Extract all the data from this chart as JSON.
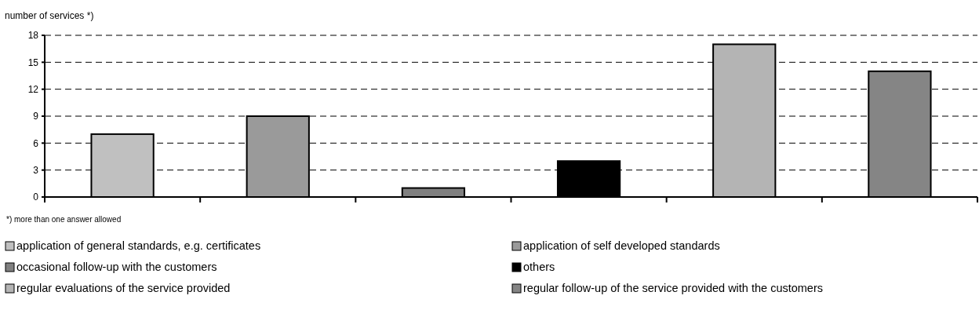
{
  "chart_data": {
    "type": "bar",
    "ylabel": "number of services *)",
    "categories": [
      null,
      null,
      null,
      null,
      null,
      null
    ],
    "series": [
      {
        "name": "application of general standards, e.g. certificates",
        "color": "#c0c0c0",
        "values": [
          7,
          null,
          null,
          null,
          null,
          null
        ]
      },
      {
        "name": "application of self developed standards",
        "color": "#9a9a9a",
        "values": [
          null,
          9,
          null,
          null,
          null,
          null
        ]
      },
      {
        "name": "occasional follow-up with the customers",
        "color": "#808080",
        "values": [
          null,
          null,
          1,
          null,
          null,
          null
        ]
      },
      {
        "name": "others",
        "color": "#000000",
        "values": [
          null,
          null,
          null,
          4,
          null,
          null
        ]
      },
      {
        "name": "regular evaluations of the service provided",
        "color": "#b4b4b4",
        "values": [
          null,
          null,
          null,
          null,
          17,
          null
        ]
      },
      {
        "name": "regular follow-up of the service provided with the customers",
        "color": "#858585",
        "values": [
          null,
          null,
          null,
          null,
          null,
          14
        ]
      }
    ],
    "ylim": [
      0,
      18
    ],
    "yticks": [
      0,
      3,
      6,
      9,
      12,
      15,
      18
    ],
    "grid": "y",
    "legend": "bottom",
    "annotations": [
      "*) more than one answer allowed"
    ]
  }
}
